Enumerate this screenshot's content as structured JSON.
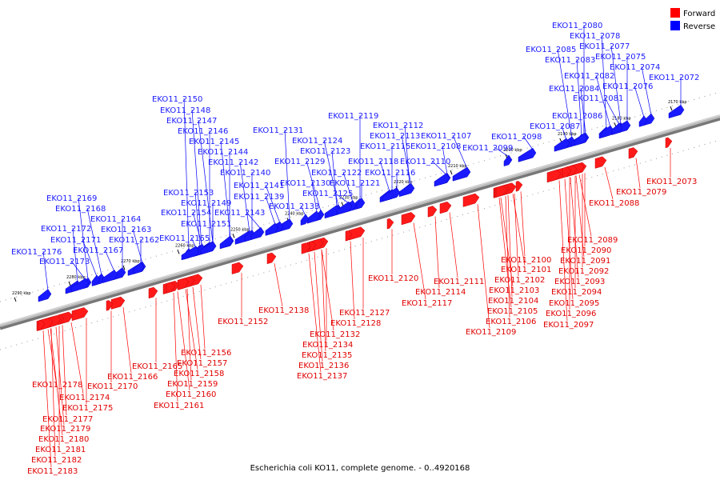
{
  "caption": "Escherichia coli KO11, complete genome. - 0..4920168",
  "legend": [
    {
      "label": "Forward",
      "color": "#ff0000"
    },
    {
      "label": "Reverse",
      "color": "#0000ff"
    }
  ],
  "ticks": [
    "2170 kbp",
    "2180 kbp",
    "2190 kbp",
    "2200 kbp",
    "2210 kbp",
    "2220 kbp",
    "2230 kbp",
    "2240 kbp",
    "2250 kbp",
    "2260 kbp",
    "2270 kbp",
    "2280 kbp",
    "2290 kbp"
  ],
  "reverse_genes": [
    "EKO11_2080",
    "EKO11_2078",
    "EKO11_2077",
    "EKO11_2085",
    "EKO11_2075",
    "EKO11_2083",
    "EKO11_2074",
    "EKO11_2082",
    "EKO11_2072",
    "EKO11_2084",
    "EKO11_2076",
    "EKO11_2081",
    "EKO11_2086",
    "EKO11_2087",
    "EKO11_2098",
    "EKO11_2099",
    "EKO11_2119",
    "EKO11_2112",
    "EKO11_2113",
    "EKO11_2107",
    "EKO11_2115",
    "EKO11_2108",
    "EKO11_2118",
    "EKO11_2110",
    "EKO11_2116",
    "EKO11_2150",
    "EKO11_2148",
    "EKO11_2147",
    "EKO11_2146",
    "EKO11_2131",
    "EKO11_2145",
    "EKO11_2124",
    "EKO11_2144",
    "EKO11_2123",
    "EKO11_2142",
    "EKO11_2129",
    "EKO11_2140",
    "EKO11_2130",
    "EKO11_2122",
    "EKO11_2141",
    "EKO11_2121",
    "EKO11_2153",
    "EKO11_2139",
    "EKO11_2125",
    "EKO11_2149",
    "EKO11_2133",
    "EKO11_2154",
    "EKO11_2143",
    "EKO11_2151",
    "EKO11_2155",
    "EKO11_2169",
    "EKO11_2168",
    "EKO11_2164",
    "EKO11_2172",
    "EKO11_2163",
    "EKO11_2171",
    "EKO11_2162",
    "EKO11_2176",
    "EKO11_2167",
    "EKO11_2173"
  ],
  "forward_genes": [
    "EKO11_2073",
    "EKO11_2079",
    "EKO11_2088",
    "EKO11_2089",
    "EKO11_2090",
    "EKO11_2100",
    "EKO11_2091",
    "EKO11_2101",
    "EKO11_2092",
    "EKO11_2102",
    "EKO11_2093",
    "EKO11_2103",
    "EKO11_2094",
    "EKO11_2104",
    "EKO11_2095",
    "EKO11_2105",
    "EKO11_2096",
    "EKO11_2106",
    "EKO11_2097",
    "EKO11_2109",
    "EKO11_2120",
    "EKO11_2114",
    "EKO11_2111",
    "EKO11_2117",
    "EKO11_2127",
    "EKO11_2128",
    "EKO11_2138",
    "EKO11_2132",
    "EKO11_2134",
    "EKO11_2135",
    "EKO11_2136",
    "EKO11_2137",
    "EKO11_2152",
    "EKO11_2156",
    "EKO11_2157",
    "EKO11_2158",
    "EKO11_2165",
    "EKO11_2159",
    "EKO11_2166",
    "EKO11_2160",
    "EKO11_2170",
    "EKO11_2161",
    "EKO11_2178",
    "EKO11_2174",
    "EKO11_2175",
    "EKO11_2177",
    "EKO11_2179",
    "EKO11_2180",
    "EKO11_2181",
    "EKO11_2182",
    "EKO11_2183"
  ]
}
